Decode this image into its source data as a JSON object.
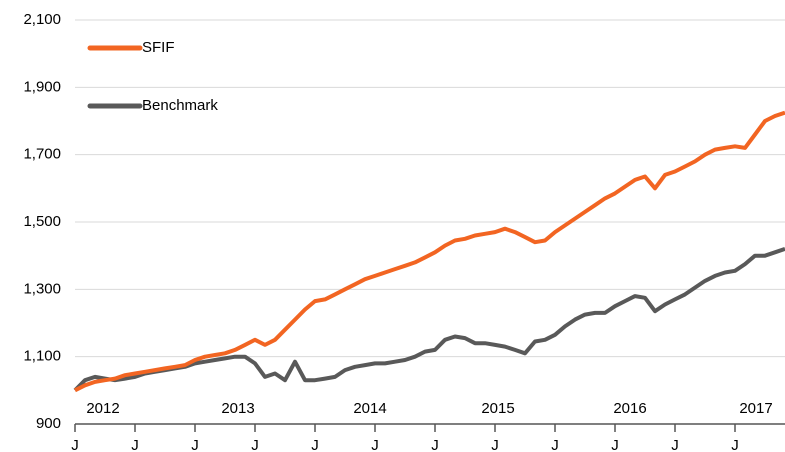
{
  "chart_data": {
    "type": "line",
    "x": [
      0,
      1,
      2,
      3,
      4,
      5,
      6,
      7,
      8,
      9,
      10,
      11,
      12,
      13,
      14,
      15,
      16,
      17,
      18,
      19,
      20,
      21,
      22,
      23,
      24,
      25,
      26,
      27,
      28,
      29,
      30,
      31,
      32,
      33,
      34,
      35,
      36,
      37,
      38,
      39,
      40,
      41,
      42,
      43,
      44,
      45,
      46,
      47,
      48,
      49,
      50,
      51,
      52,
      53,
      54,
      55,
      56,
      57,
      58,
      59,
      60,
      61,
      62,
      63,
      64,
      65,
      66,
      67,
      68,
      69,
      70,
      71
    ],
    "series": [
      {
        "name": "SFIF",
        "color": "#f26522",
        "values": [
          1000,
          1015,
          1025,
          1030,
          1035,
          1045,
          1050,
          1055,
          1060,
          1065,
          1070,
          1075,
          1090,
          1100,
          1105,
          1110,
          1120,
          1135,
          1150,
          1135,
          1150,
          1180,
          1210,
          1240,
          1265,
          1270,
          1285,
          1300,
          1315,
          1330,
          1340,
          1350,
          1360,
          1370,
          1380,
          1395,
          1410,
          1430,
          1445,
          1450,
          1460,
          1465,
          1470,
          1480,
          1470,
          1455,
          1440,
          1445,
          1470,
          1490,
          1510,
          1530,
          1550,
          1570,
          1585,
          1605,
          1625,
          1635,
          1600,
          1640,
          1650,
          1665,
          1680,
          1700,
          1715,
          1720,
          1725,
          1720,
          1760,
          1800,
          1815,
          1825
        ]
      },
      {
        "name": "Benchmark",
        "color": "#595959",
        "values": [
          1000,
          1030,
          1040,
          1035,
          1030,
          1035,
          1040,
          1050,
          1055,
          1060,
          1065,
          1070,
          1080,
          1085,
          1090,
          1095,
          1100,
          1100,
          1080,
          1040,
          1050,
          1030,
          1085,
          1030,
          1030,
          1035,
          1040,
          1060,
          1070,
          1075,
          1080,
          1080,
          1085,
          1090,
          1100,
          1115,
          1120,
          1150,
          1160,
          1155,
          1140,
          1140,
          1135,
          1130,
          1120,
          1110,
          1145,
          1150,
          1165,
          1190,
          1210,
          1225,
          1230,
          1230,
          1250,
          1265,
          1280,
          1275,
          1235,
          1255,
          1270,
          1285,
          1305,
          1325,
          1340,
          1350,
          1355,
          1375,
          1400,
          1400,
          1410,
          1420
        ]
      }
    ],
    "xlim": [
      0,
      71
    ],
    "xticks": [
      {
        "value": 0,
        "label": "J"
      },
      {
        "value": 6,
        "label": "J"
      },
      {
        "value": 12,
        "label": "J"
      },
      {
        "value": 18,
        "label": "J"
      },
      {
        "value": 24,
        "label": "J"
      },
      {
        "value": 30,
        "label": "J"
      },
      {
        "value": 36,
        "label": "J"
      },
      {
        "value": 42,
        "label": "J"
      },
      {
        "value": 48,
        "label": "J"
      },
      {
        "value": 54,
        "label": "J"
      },
      {
        "value": 60,
        "label": "J"
      },
      {
        "value": 66,
        "label": "J"
      }
    ],
    "annotations": [
      {
        "x": 2.8,
        "text": "2012"
      },
      {
        "x": 16.3,
        "text": "2013"
      },
      {
        "x": 29.5,
        "text": "2014"
      },
      {
        "x": 42.3,
        "text": "2015"
      },
      {
        "x": 55.5,
        "text": "2016"
      },
      {
        "x": 68.1,
        "text": "2017"
      }
    ],
    "ylim": [
      900,
      2100
    ],
    "yticks": [
      900,
      {
        "value": 1100,
        "label": "1,100"
      },
      {
        "value": 1300,
        "label": "1,300"
      },
      {
        "value": 1500,
        "label": "1,500"
      },
      {
        "value": 1700,
        "label": "1,700"
      },
      {
        "value": 1900,
        "label": "1,900"
      },
      {
        "value": 2100,
        "label": "2,100"
      }
    ],
    "grid": true,
    "legend": "upper left"
  }
}
